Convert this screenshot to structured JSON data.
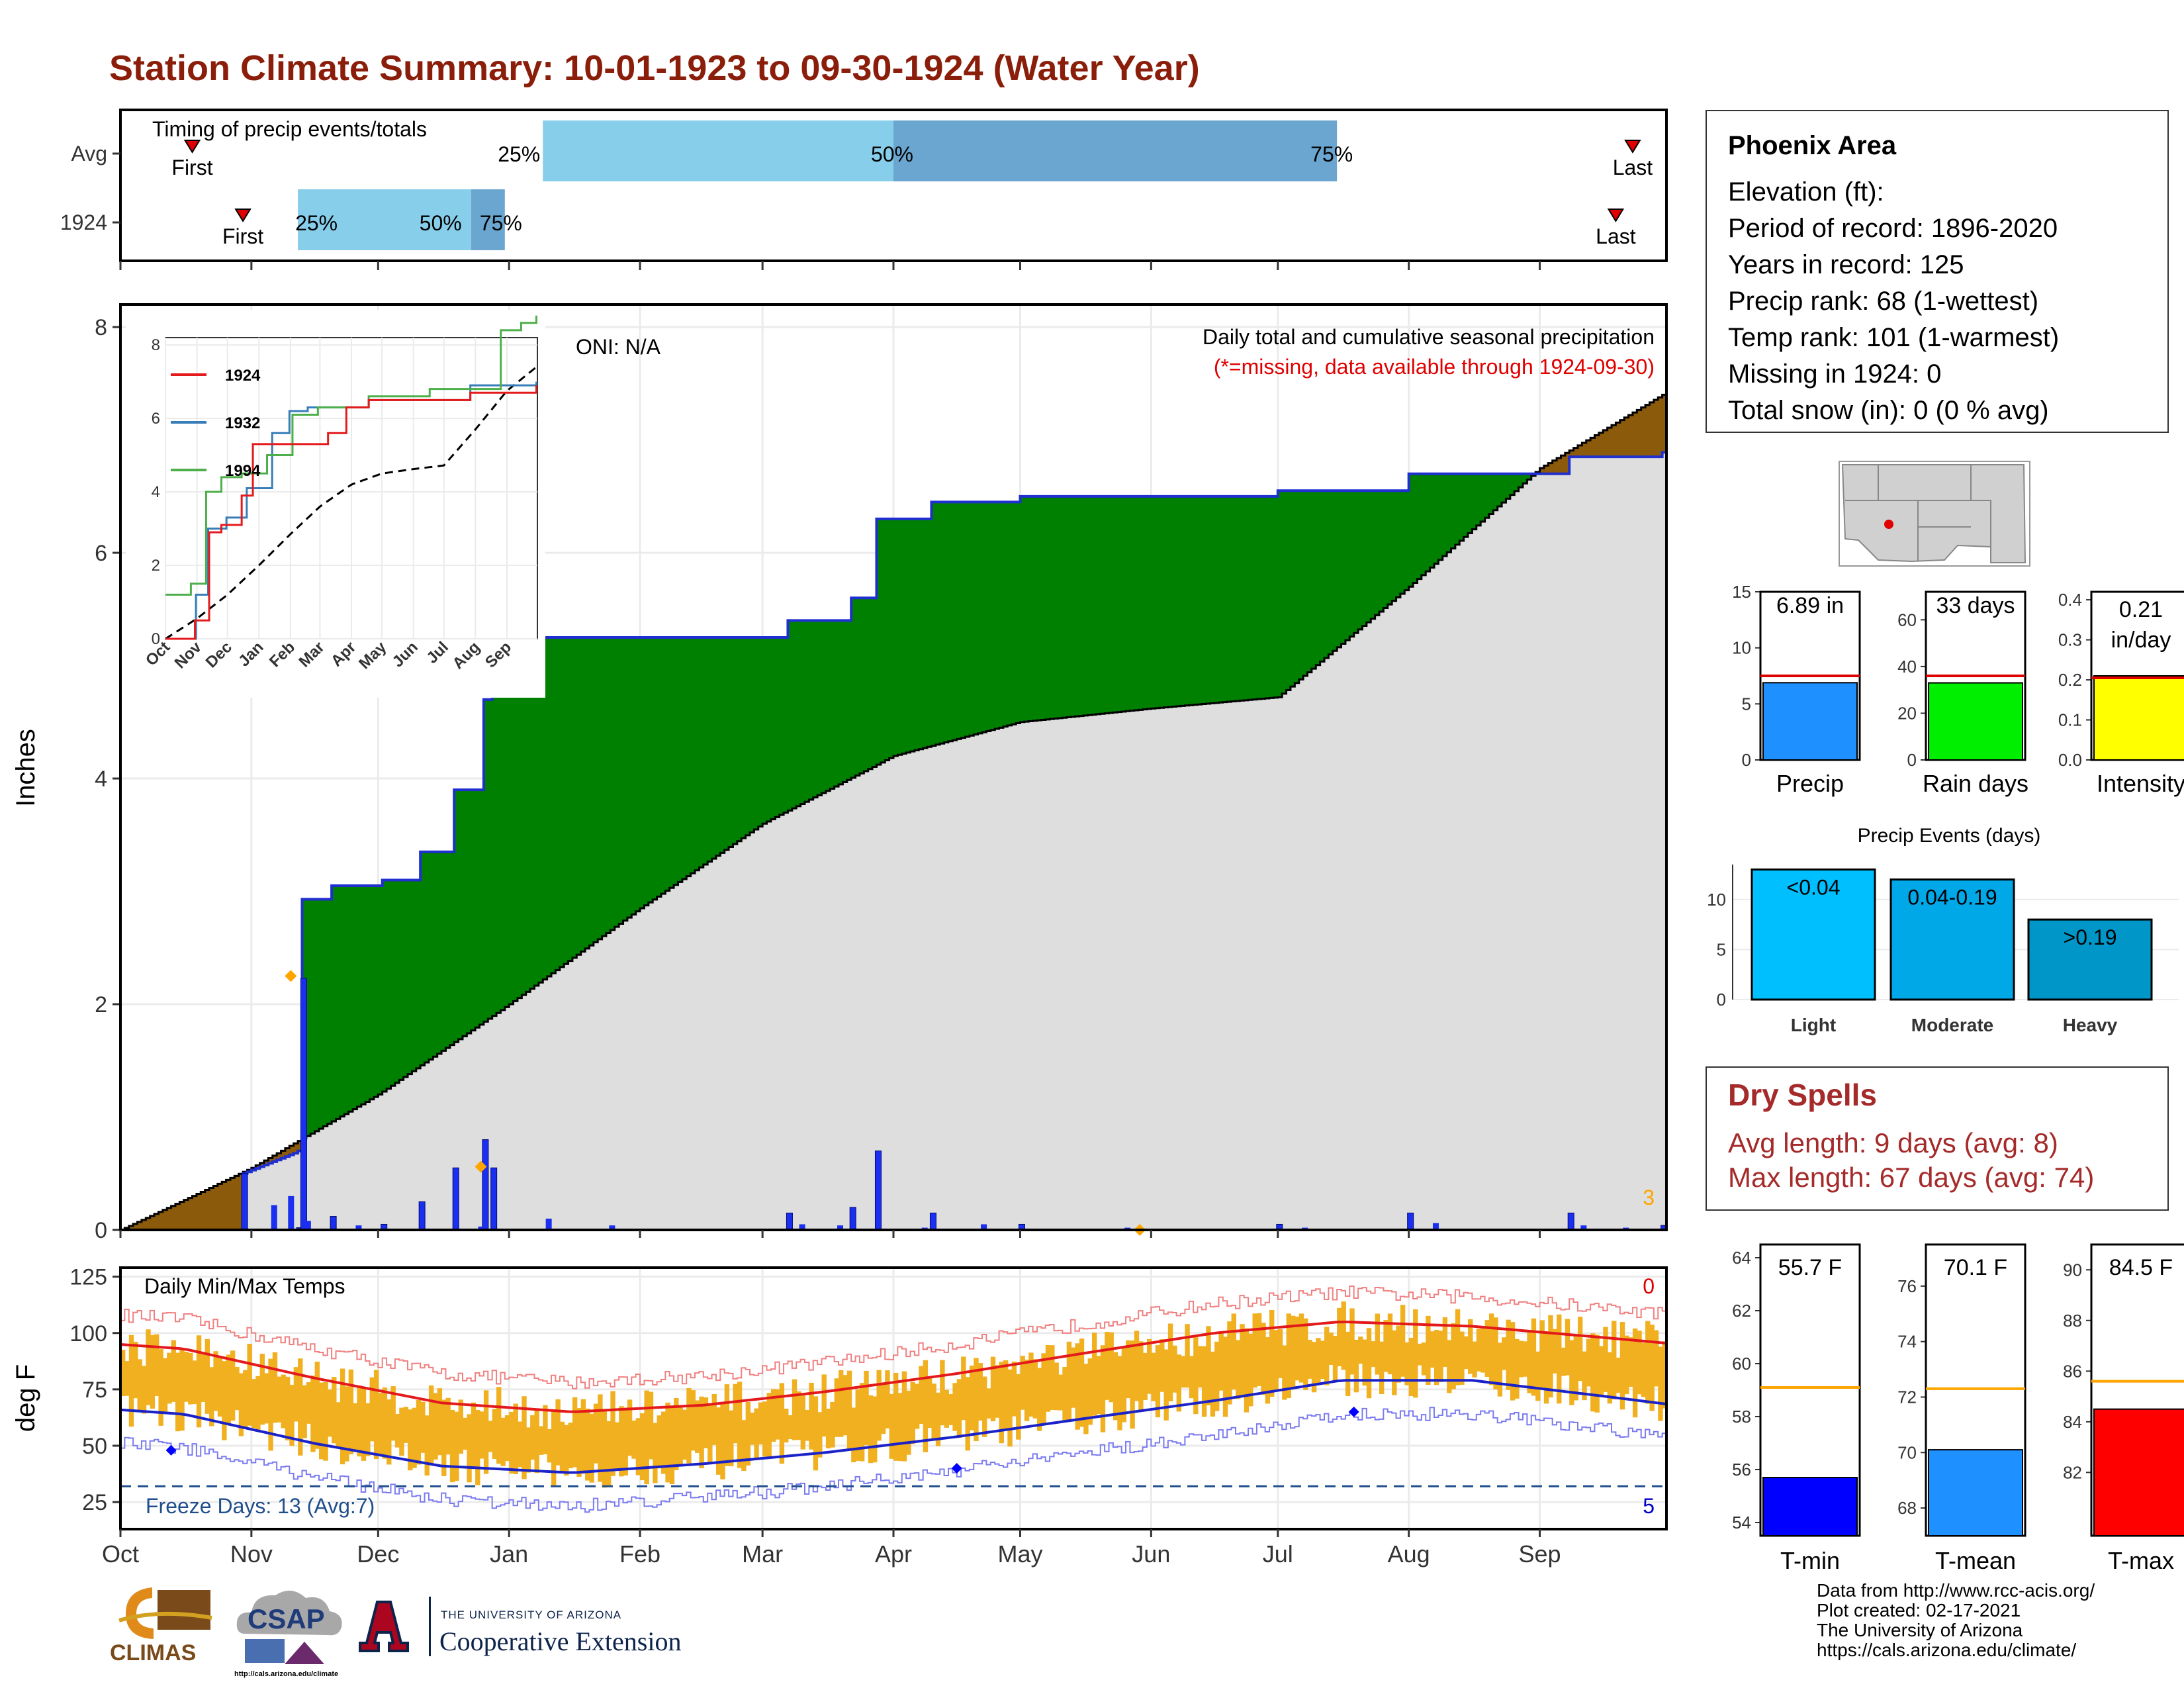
{
  "title": "Station Climate Summary: 10-01-1923 to 09-30-1924 (Water Year)",
  "colors": {
    "title": "#8b1e0a",
    "avg_line": "#000000",
    "cum_line": "#1f2fd0",
    "wet": "#008000",
    "dry": "#8b5a0b",
    "normal_fill": "#dedede",
    "daily_bar": "#1a2ff0",
    "q_light": "#87ceeb",
    "q_dark": "#6aa6cf",
    "tmax_norm": "#e31a1c",
    "tmin_norm": "#1a22c8",
    "range_bar": "#f0b020",
    "freeze": "#1f4e8c",
    "dry_spell_text": "#a52a2a"
  },
  "timing": {
    "label": "Timing of precip events/totals",
    "rows": [
      {
        "name": "Avg",
        "first_day": 17,
        "q25_day": 100,
        "q50_day": 183,
        "q75_day": 288,
        "last_day": 358,
        "first_label": "First",
        "last_label": "Last",
        "q25_label": "25%",
        "q50_label": "50%",
        "q75_label": "75%"
      },
      {
        "name": "1924",
        "first_day": 29,
        "q25_day": 42,
        "q50_day": 83,
        "q75_day": 91,
        "last_day": 354,
        "first_label": "First",
        "last_label": "Last",
        "q25_label": "25%",
        "q50_label": "50%",
        "q75_label": "75%"
      }
    ]
  },
  "precip": {
    "ylabel": "Inches",
    "oni": "ONI: N/A",
    "note1": "Daily total and cumulative seasonal precipitation",
    "note2": "(*=missing, data available through 1924-09-30)",
    "corner_count": "3",
    "ylim": [
      0,
      8.2
    ],
    "yticks": [
      0,
      2,
      4,
      6,
      8
    ],
    "inset": {
      "yticks": [
        0,
        2,
        4,
        6,
        8
      ],
      "xticks": [
        "Oct",
        "Nov",
        "Dec",
        "Jan",
        "Feb",
        "Mar",
        "Apr",
        "May",
        "Jun",
        "Jul",
        "Aug",
        "Sep"
      ],
      "legend": [
        "1924",
        "1932",
        "1994"
      ]
    }
  },
  "temps": {
    "ylabel": "deg F",
    "label": "Daily Min/Max Temps",
    "freeze_label": "Freeze Days: 13 (Avg:7)",
    "count_top": "0",
    "count_bottom": "5",
    "yticks": [
      25,
      50,
      75,
      100,
      125
    ],
    "ylim": [
      13,
      129
    ],
    "freeze_line": 32
  },
  "months": [
    "Oct",
    "Nov",
    "Dec",
    "Jan",
    "Feb",
    "Mar",
    "Apr",
    "May",
    "Jun",
    "Jul",
    "Aug",
    "Sep"
  ],
  "station": {
    "name": "Phoenix Area",
    "lines": [
      "Elevation (ft):",
      "Period of record: 1896-2020",
      "Years in record: 125",
      "Precip rank: 68 (1-wettest)",
      "Temp rank: 101 (1-warmest)",
      "Missing in 1924: 0",
      "Total snow (in): 0 (0 % avg)"
    ]
  },
  "summary_bars": [
    {
      "label": "Precip",
      "value_text": "6.89 in",
      "value": 6.89,
      "avg": 7.5,
      "ylim": [
        0,
        15
      ],
      "yticks": [
        "0",
        "5",
        "10",
        "15"
      ],
      "color": "#1e90ff"
    },
    {
      "label": "Rain days",
      "value_text": "33 days",
      "value": 33,
      "avg": 36,
      "ylim": [
        0,
        72
      ],
      "yticks": [
        "0",
        "20",
        "40",
        "60"
      ],
      "color": "#00ee00"
    },
    {
      "label": "Intensity",
      "value_text": "0.21\nin/day",
      "value": 0.21,
      "avg": 0.205,
      "ylim": [
        0,
        0.42
      ],
      "yticks": [
        "0.0",
        "0.1",
        "0.2",
        "0.3",
        "0.4"
      ],
      "color": "#ffff00"
    }
  ],
  "events": {
    "title": "Precip Events (days)",
    "yticks": [
      0,
      5,
      10
    ],
    "ylim": [
      0,
      13.5
    ],
    "categories": [
      "Light",
      "Moderate",
      "Heavy"
    ],
    "bar_labels": [
      "<0.04",
      "0.04-0.19",
      ">0.19"
    ],
    "values": [
      13,
      12,
      8
    ],
    "colors": [
      "#00bfff",
      "#00a8e8",
      "#0096c8"
    ]
  },
  "dry_spells": {
    "title": "Dry Spells",
    "avg": "Avg length: 9 days (avg: 8)",
    "max": "Max length: 67 days (avg: 74)"
  },
  "temp_bars": [
    {
      "label": "T-min",
      "value_text": "55.7 F",
      "value": 55.7,
      "avg": 59.1,
      "ylim": [
        53.5,
        64.5
      ],
      "yticks": [
        54,
        56,
        58,
        60,
        62,
        64
      ],
      "color": "#0000ff"
    },
    {
      "label": "T-mean",
      "value_text": "70.1 F",
      "value": 70.1,
      "avg": 72.3,
      "ylim": [
        67,
        77.5
      ],
      "yticks": [
        68,
        70,
        72,
        74,
        76
      ],
      "color": "#1e90ff"
    },
    {
      "label": "T-max",
      "value_text": "84.5 F",
      "value": 84.5,
      "avg": 85.6,
      "ylim": [
        79.5,
        91
      ],
      "yticks": [
        82,
        84,
        86,
        88,
        90
      ],
      "color": "#ff0000"
    }
  ],
  "footer": {
    "lines": [
      "Data from http://www.rcc-acis.org/",
      "Plot created: 02-17-2021",
      "The University of Arizona",
      "https://cals.arizona.edu/climate/"
    ]
  },
  "logos": {
    "climas": "CLIMAS",
    "csap": "CSAP",
    "csap_url": "http://cals.arizona.edu/climate",
    "ua_small": "THE UNIVERSITY OF ARIZONA",
    "ua_big": "Cooperative Extension"
  },
  "chart_data": [
    {
      "type": "bar",
      "title": "Timing of precip events/totals",
      "categories": [
        "Avg",
        "1924"
      ],
      "series": [
        {
          "name": "First",
          "values": [
            "Oct 18",
            "Oct 30"
          ]
        },
        {
          "name": "25%",
          "values": [
            "Jan 8",
            "Nov 12"
          ]
        },
        {
          "name": "50%",
          "values": [
            "Apr 1",
            "Dec 23"
          ]
        },
        {
          "name": "75%",
          "values": [
            "Jul 15",
            "Dec 31"
          ]
        },
        {
          "name": "Last",
          "values": [
            "Sep 23",
            "Sep 19"
          ]
        }
      ]
    },
    {
      "type": "area",
      "title": "Daily total and cumulative seasonal precipitation",
      "ylabel": "Inches",
      "ylim": [
        0,
        8.2
      ],
      "xlabel": "",
      "cumulative_1924": [
        {
          "x": "1923-10-01",
          "y": 0
        },
        {
          "x": "1923-10-30",
          "y": 0.5
        },
        {
          "x": "1923-11-12",
          "y": 0.7
        },
        {
          "x": "1923-11-13",
          "y": 2.93
        },
        {
          "x": "1923-11-20",
          "y": 3.05
        },
        {
          "x": "1923-12-02",
          "y": 3.1
        },
        {
          "x": "1923-12-11",
          "y": 3.35
        },
        {
          "x": "1923-12-19",
          "y": 3.9
        },
        {
          "x": "1923-12-26",
          "y": 4.7
        },
        {
          "x": "1923-12-28",
          "y": 5.25
        },
        {
          "x": "1924-03-07",
          "y": 5.4
        },
        {
          "x": "1924-03-22",
          "y": 5.6
        },
        {
          "x": "1924-03-28",
          "y": 6.3
        },
        {
          "x": "1924-04-10",
          "y": 6.45
        },
        {
          "x": "1924-05-01",
          "y": 6.5
        },
        {
          "x": "1924-07-01",
          "y": 6.55
        },
        {
          "x": "1924-08-01",
          "y": 6.7
        },
        {
          "x": "1924-09-08",
          "y": 6.85
        },
        {
          "x": "1924-09-30",
          "y": 6.89
        }
      ],
      "normal_cumulative": [
        {
          "x": "1923-10-01",
          "y": 0
        },
        {
          "x": "1923-11-01",
          "y": 0.55
        },
        {
          "x": "1923-12-01",
          "y": 1.2
        },
        {
          "x": "1924-01-01",
          "y": 2.0
        },
        {
          "x": "1924-02-01",
          "y": 2.85
        },
        {
          "x": "1924-03-01",
          "y": 3.6
        },
        {
          "x": "1924-04-01",
          "y": 4.2
        },
        {
          "x": "1924-05-01",
          "y": 4.5
        },
        {
          "x": "1924-06-01",
          "y": 4.62
        },
        {
          "x": "1924-07-01",
          "y": 4.72
        },
        {
          "x": "1924-08-01",
          "y": 5.7
        },
        {
          "x": "1924-09-01",
          "y": 6.75
        },
        {
          "x": "1924-09-30",
          "y": 7.4
        }
      ]
    },
    {
      "type": "line",
      "title": "Daily Min/Max Temps",
      "ylabel": "deg F",
      "ylim": [
        13,
        129
      ],
      "categories": [
        "Oct",
        "Nov",
        "Dec",
        "Jan",
        "Feb",
        "Mar",
        "Apr",
        "May",
        "Jun",
        "Jul",
        "Aug",
        "Sep"
      ],
      "series": [
        {
          "name": "normal max",
          "values": [
            93,
            80,
            69,
            65,
            68,
            74,
            82,
            91,
            100,
            105,
            103,
            98
          ]
        },
        {
          "name": "normal min",
          "values": [
            64,
            51,
            41,
            38,
            42,
            47,
            54,
            62,
            70,
            79,
            79,
            72
          ]
        }
      ]
    },
    {
      "type": "bar",
      "title": "Precip Events (days)",
      "categories": [
        "Light",
        "Moderate",
        "Heavy"
      ],
      "values": [
        13,
        12,
        8
      ]
    }
  ]
}
